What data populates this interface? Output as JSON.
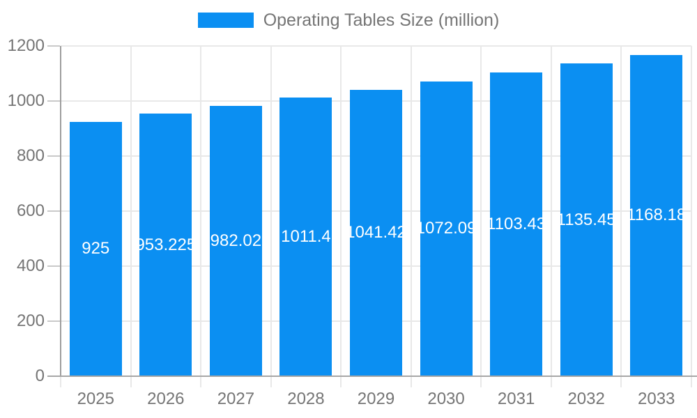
{
  "legend": {
    "label": "Operating Tables Size (million)"
  },
  "chart_data": {
    "type": "bar",
    "title": "Operating Tables Size (million)",
    "xlabel": "",
    "ylabel": "",
    "categories": [
      "2025",
      "2026",
      "2027",
      "2028",
      "2029",
      "2030",
      "2031",
      "2032",
      "2033"
    ],
    "values": [
      925,
      953.225,
      982.02,
      1011.4,
      1041.42,
      1072.09,
      1103.43,
      1135.45,
      1168.18
    ],
    "bar_labels": [
      "925",
      "953.225",
      "982.02",
      "1011.4",
      "1041.42",
      "1072.09",
      "1103.43",
      "1135.45",
      "1168.18"
    ],
    "ylim": [
      0,
      1200
    ],
    "yticks": [
      0,
      200,
      400,
      600,
      800,
      1000,
      1200
    ],
    "grid": true,
    "legend_position": "top",
    "colors": {
      "bar": "#0b8ff2",
      "bar_label_text": "#ffffff",
      "axis_text": "#757575",
      "y_axis_line": "#9e9e9e",
      "x_axis_line": "#a6a6a6",
      "grid_line": "#e8e8e8",
      "tick_line": "#c9c9c9",
      "background": "#ffffff"
    }
  }
}
